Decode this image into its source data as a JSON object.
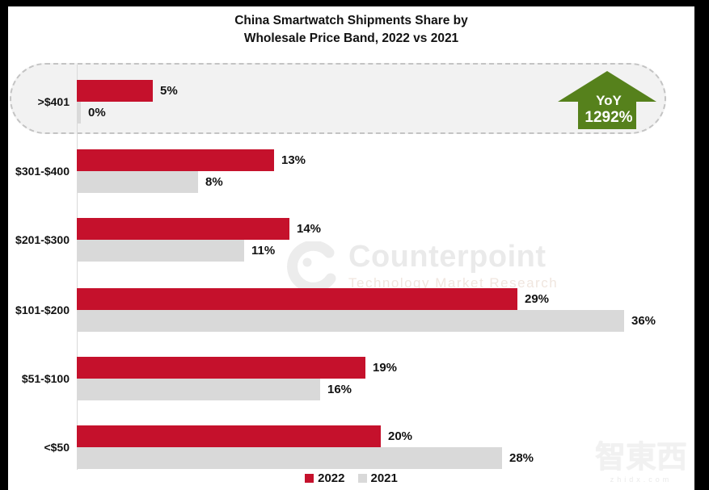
{
  "title": {
    "line1": "China Smartwatch Shipments Share by",
    "line2": "Wholesale Price Band, 2022 vs 2021"
  },
  "chart_data": {
    "type": "bar",
    "orientation": "horizontal",
    "title": "China Smartwatch Shipments Share by Wholesale Price Band, 2022 vs 2021",
    "categories": [
      ">$401",
      "$301-$400",
      "$201-$300",
      "$101-$200",
      "$51-$100",
      "<$50"
    ],
    "series": [
      {
        "name": "2022",
        "color": "#C5112C",
        "values": [
          5,
          13,
          14,
          29,
          19,
          20
        ]
      },
      {
        "name": "2021",
        "color": "#D9D9D9",
        "values": [
          0,
          8,
          11,
          36,
          16,
          28
        ]
      }
    ],
    "value_suffix": "%",
    "xlim": [
      0,
      40
    ],
    "grid": false,
    "legend_position": "bottom",
    "highlight": {
      "category": ">$401",
      "style": "dashed-rounded-box",
      "background": "#F2F2F2"
    },
    "annotation": {
      "applies_to": ">$401",
      "label_line1": "YoY",
      "label_line2": "1292%",
      "shape": "up-arrow",
      "color": "#56811C"
    }
  },
  "legend": {
    "items": [
      {
        "label": "2022",
        "color": "#C5112C"
      },
      {
        "label": "2021",
        "color": "#D9D9D9"
      }
    ]
  },
  "watermarks": {
    "counterpoint": {
      "brand": "Counterpoint",
      "subtext": "Technology Market Research"
    },
    "zhidx": {
      "text": "智東西",
      "domain": "zhidx.com"
    }
  }
}
